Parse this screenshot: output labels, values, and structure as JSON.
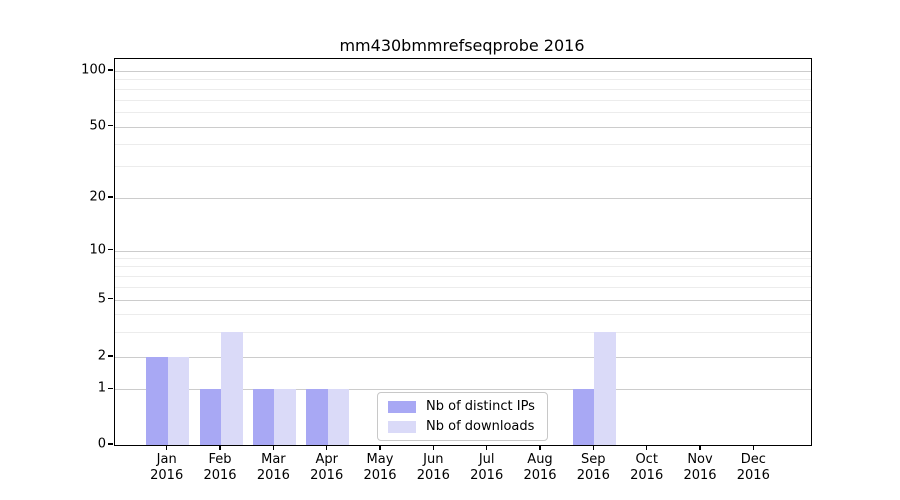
{
  "chart_data": {
    "type": "bar",
    "title": "mm430bmmrefseqprobe 2016",
    "categories": [
      "Jan 2016",
      "Feb 2016",
      "Mar 2016",
      "Apr 2016",
      "May 2016",
      "Jun 2016",
      "Jul 2016",
      "Aug 2016",
      "Sep 2016",
      "Oct 2016",
      "Nov 2016",
      "Dec 2016"
    ],
    "series": [
      {
        "name": "Nb of distinct IPs",
        "color": "#a8a8f4",
        "values": [
          2,
          1,
          1,
          1,
          0,
          0,
          0,
          0,
          1,
          0,
          0,
          0
        ]
      },
      {
        "name": "Nb of downloads",
        "color": "#dadaf8",
        "values": [
          2,
          3,
          1,
          1,
          0,
          0,
          0,
          0,
          3,
          0,
          0,
          0
        ]
      }
    ],
    "yticks": [
      0,
      1,
      2,
      5,
      10,
      20,
      50,
      100
    ],
    "ylim": [
      0,
      110
    ],
    "yscale": "log-above-1-linear-below-1",
    "grid": true,
    "legend_position": "lower-center"
  },
  "colors": {
    "bar_distinct_ips": "#a8a8f4",
    "bar_downloads": "#dadaf8",
    "grid_major": "#cccccc",
    "grid_minor": "#ececec",
    "axis": "#000000",
    "background": "#ffffff",
    "legend_border": "#c8c8c8"
  }
}
